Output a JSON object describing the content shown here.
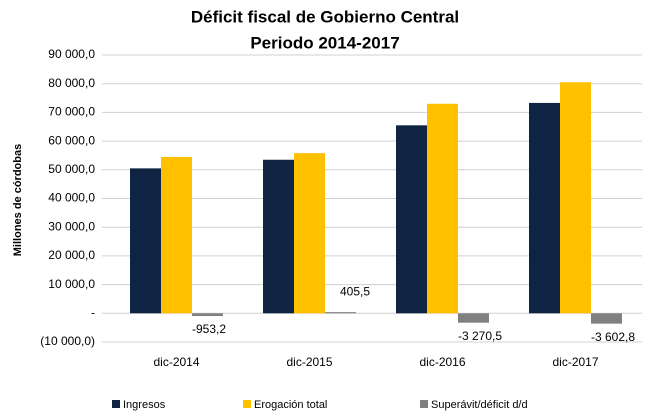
{
  "chart_data": {
    "type": "bar",
    "title": "Déficit fiscal de Gobierno Central",
    "subtitle": "Periodo 2014-2017",
    "y_label": "Millones de córdobas",
    "categories": [
      "dic-2014",
      "dic-2015",
      "dic-2016",
      "dic-2017"
    ],
    "series": [
      {
        "name": "Ingresos",
        "color": "#0f2442",
        "values": [
          50500,
          53500,
          65500,
          73300
        ]
      },
      {
        "name": "Erogación total",
        "color": "#ffc000",
        "values": [
          54500,
          55800,
          73000,
          80500
        ]
      },
      {
        "name": "Superávit/déficit d/d",
        "color": "#808080",
        "values": [
          -953.2,
          405.5,
          -3270.5,
          -3602.8
        ],
        "value_labels": [
          "-953,2",
          "405,5",
          "-3 270,5",
          "-3 602,8"
        ]
      }
    ],
    "ylim": [
      -10000,
      90000
    ],
    "yticks": [
      {
        "value": -10000,
        "label": "(10 000,0)"
      },
      {
        "value": 0,
        "label": "-"
      },
      {
        "value": 10000,
        "label": "10 000,0"
      },
      {
        "value": 20000,
        "label": "20 000,0"
      },
      {
        "value": 30000,
        "label": "30 000,0"
      },
      {
        "value": 40000,
        "label": "40 000,0"
      },
      {
        "value": 50000,
        "label": "50 000,0"
      },
      {
        "value": 60000,
        "label": "60 000,0"
      },
      {
        "value": 70000,
        "label": "70 000,0"
      },
      {
        "value": 80000,
        "label": "80 000,0"
      },
      {
        "value": 90000,
        "label": "90 000,0"
      }
    ],
    "grid": true,
    "legend": "bottom"
  }
}
